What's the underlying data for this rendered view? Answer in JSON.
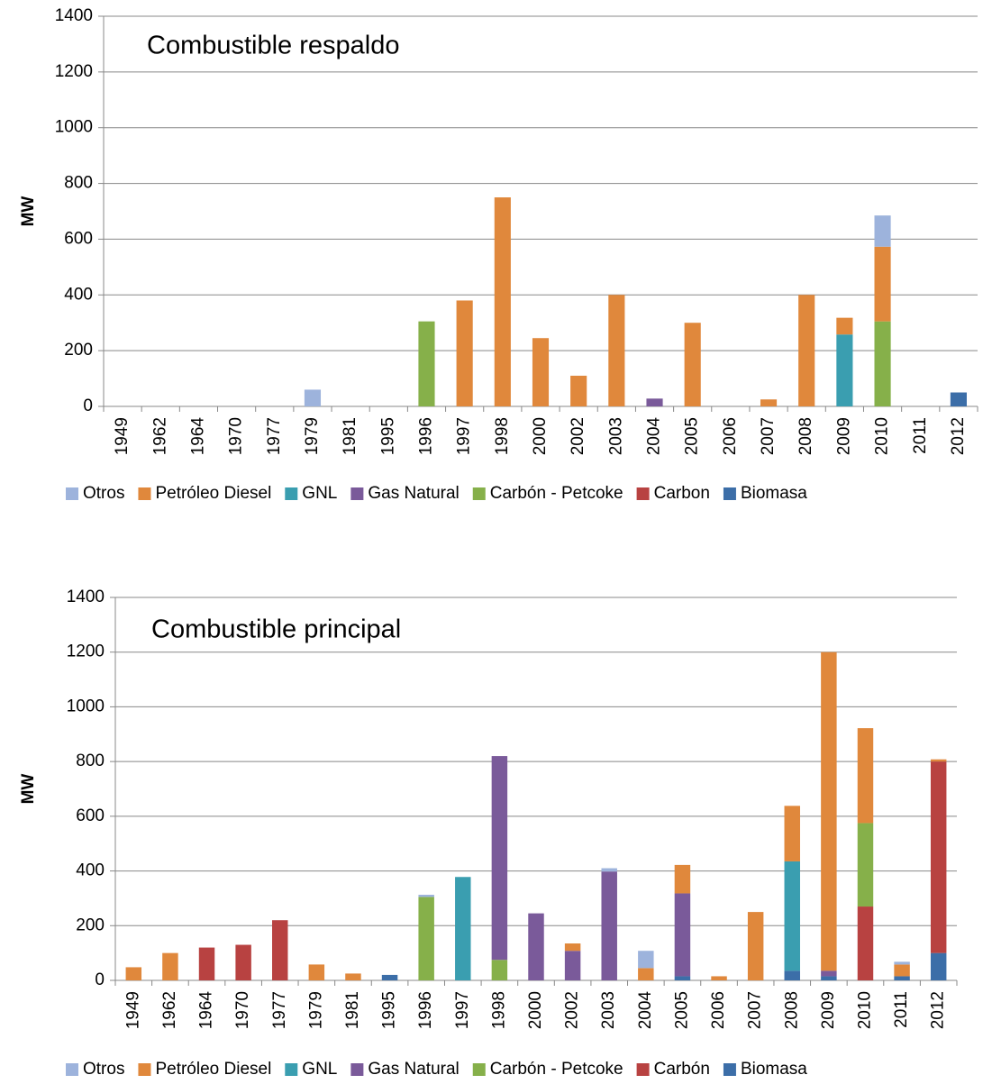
{
  "chart_data": [
    {
      "type": "stacked-bar",
      "title": "Combustible respaldo",
      "y_label": "MW",
      "categories": [
        "1949",
        "1962",
        "1964",
        "1970",
        "1977",
        "1979",
        "1981",
        "1995",
        "1996",
        "1997",
        "1998",
        "2000",
        "2002",
        "2003",
        "2004",
        "2005",
        "2006",
        "2007",
        "2008",
        "2009",
        "2010",
        "2011",
        "2012"
      ],
      "series": [
        {
          "name": "Otros",
          "color": "#9db3dc",
          "values": [
            0,
            0,
            0,
            0,
            0,
            60,
            0,
            0,
            0,
            0,
            0,
            0,
            0,
            0,
            0,
            0,
            0,
            0,
            0,
            0,
            112,
            0,
            0
          ]
        },
        {
          "name": "Petróleo Diesel",
          "color": "#e0883c",
          "values": [
            0,
            0,
            0,
            0,
            0,
            0,
            0,
            0,
            0,
            380,
            750,
            245,
            110,
            400,
            0,
            300,
            0,
            25,
            400,
            60,
            268,
            0,
            0
          ]
        },
        {
          "name": "GNL",
          "color": "#3a9eb0",
          "values": [
            0,
            0,
            0,
            0,
            0,
            0,
            0,
            0,
            0,
            0,
            0,
            0,
            0,
            0,
            0,
            0,
            0,
            0,
            0,
            258,
            0,
            0,
            0
          ]
        },
        {
          "name": "Gas Natural",
          "color": "#7a5a9a",
          "values": [
            0,
            0,
            0,
            0,
            0,
            0,
            0,
            0,
            0,
            0,
            0,
            0,
            0,
            0,
            28,
            0,
            0,
            0,
            0,
            0,
            0,
            0,
            0
          ]
        },
        {
          "name": "Carbón - Petcoke",
          "color": "#86b04a",
          "values": [
            0,
            0,
            0,
            0,
            0,
            0,
            0,
            0,
            305,
            0,
            0,
            0,
            0,
            0,
            0,
            0,
            0,
            0,
            0,
            0,
            305,
            0,
            0
          ]
        },
        {
          "name": "Carbon",
          "color": "#b84241",
          "values": [
            0,
            0,
            0,
            0,
            0,
            0,
            0,
            0,
            0,
            0,
            0,
            0,
            0,
            0,
            0,
            0,
            0,
            0,
            0,
            0,
            0,
            0,
            0
          ]
        },
        {
          "name": "Biomasa",
          "color": "#3c6ea8",
          "values": [
            0,
            0,
            0,
            0,
            0,
            0,
            0,
            0,
            0,
            0,
            0,
            0,
            0,
            0,
            0,
            0,
            0,
            0,
            0,
            0,
            0,
            0,
            50
          ]
        }
      ],
      "ylim": [
        0,
        1400
      ],
      "yticks": [
        0,
        200,
        400,
        600,
        800,
        1000,
        1200,
        1400
      ],
      "grid": true,
      "legend": "bottom"
    },
    {
      "type": "stacked-bar",
      "title": "Combustible principal",
      "y_label": "MW",
      "categories": [
        "1949",
        "1962",
        "1964",
        "1970",
        "1977",
        "1979",
        "1981",
        "1995",
        "1996",
        "1997",
        "1998",
        "2000",
        "2002",
        "2003",
        "2004",
        "2005",
        "2006",
        "2007",
        "2008",
        "2009",
        "2010",
        "2011",
        "2012"
      ],
      "series": [
        {
          "name": "Otros",
          "color": "#9db3dc",
          "values": [
            0,
            0,
            0,
            0,
            0,
            0,
            0,
            0,
            8,
            0,
            0,
            0,
            0,
            12,
            63,
            0,
            0,
            0,
            0,
            0,
            0,
            10,
            0
          ]
        },
        {
          "name": "Petróleo Diesel",
          "color": "#e0883c",
          "values": [
            48,
            100,
            0,
            0,
            0,
            58,
            25,
            0,
            0,
            0,
            0,
            0,
            27,
            0,
            45,
            104,
            15,
            250,
            203,
            1165,
            347,
            43,
            8
          ]
        },
        {
          "name": "GNL",
          "color": "#3a9eb0",
          "values": [
            0,
            0,
            0,
            0,
            0,
            0,
            0,
            0,
            0,
            378,
            0,
            0,
            0,
            0,
            0,
            0,
            0,
            0,
            400,
            0,
            0,
            0,
            0
          ]
        },
        {
          "name": "Gas Natural",
          "color": "#7a5a9a",
          "values": [
            0,
            0,
            0,
            0,
            0,
            0,
            0,
            0,
            0,
            0,
            745,
            245,
            108,
            398,
            0,
            303,
            0,
            0,
            0,
            20,
            0,
            0,
            0
          ]
        },
        {
          "name": "Carbón - Petcoke",
          "color": "#86b04a",
          "values": [
            0,
            0,
            0,
            0,
            0,
            0,
            0,
            0,
            305,
            0,
            75,
            0,
            0,
            0,
            0,
            0,
            0,
            0,
            0,
            0,
            305,
            0,
            0
          ]
        },
        {
          "name": "Carbón",
          "color": "#b84241",
          "values": [
            0,
            0,
            120,
            130,
            220,
            0,
            0,
            0,
            0,
            0,
            0,
            0,
            0,
            0,
            0,
            0,
            0,
            0,
            0,
            0,
            270,
            0,
            700
          ]
        },
        {
          "name": "Biomasa",
          "color": "#3c6ea8",
          "values": [
            0,
            0,
            0,
            0,
            0,
            0,
            0,
            20,
            0,
            0,
            0,
            0,
            0,
            0,
            0,
            15,
            0,
            0,
            35,
            15,
            0,
            15,
            100
          ]
        }
      ],
      "ylim": [
        0,
        1400
      ],
      "yticks": [
        0,
        200,
        400,
        600,
        800,
        1000,
        1200,
        1400
      ],
      "grid": true,
      "legend": "bottom"
    }
  ]
}
